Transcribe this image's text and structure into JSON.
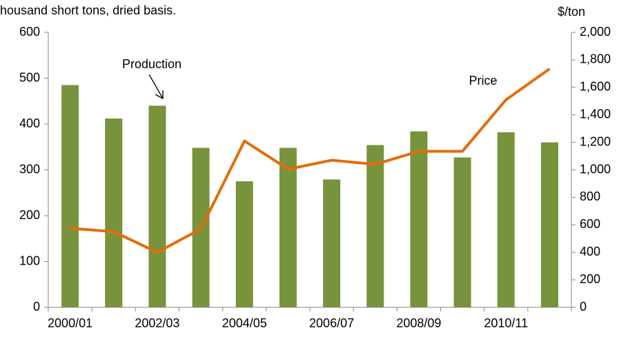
{
  "chart_data": {
    "type": "bar-line",
    "title": "housand short tons, dried basis.",
    "y2_label": "$/ton",
    "annotations": [
      "Production",
      "Price"
    ],
    "categories": [
      "2000/01",
      null,
      "2002/03",
      null,
      "2004/05",
      null,
      "2006/07",
      null,
      "2008/09",
      null,
      "2010/11",
      null
    ],
    "series": [
      {
        "name": "Production",
        "type": "bar",
        "color": "#77933c",
        "values": [
          485,
          412,
          440,
          348,
          275,
          348,
          279,
          354,
          384,
          327,
          382,
          360
        ]
      },
      {
        "name": "Price",
        "type": "line",
        "axis": "y2",
        "color": "#e36c09",
        "values": [
          575,
          550,
          400,
          570,
          1210,
          1005,
          1070,
          1040,
          1135,
          1135,
          1510,
          1735
        ]
      }
    ],
    "ylim": [
      0,
      600
    ],
    "yticks": [
      0,
      100,
      200,
      300,
      400,
      500,
      600
    ],
    "y2lim": [
      0,
      2000
    ],
    "y2ticks": [
      0,
      200,
      400,
      600,
      800,
      {
        "value": 1000,
        "label": "1,000"
      },
      {
        "value": 1200,
        "label": "1,200"
      },
      {
        "value": 1400,
        "label": "1,400"
      },
      {
        "value": 1600,
        "label": "1,600"
      },
      {
        "value": 1800,
        "label": "1,800"
      },
      {
        "value": 2000,
        "label": "2,000"
      }
    ],
    "grid": false
  }
}
